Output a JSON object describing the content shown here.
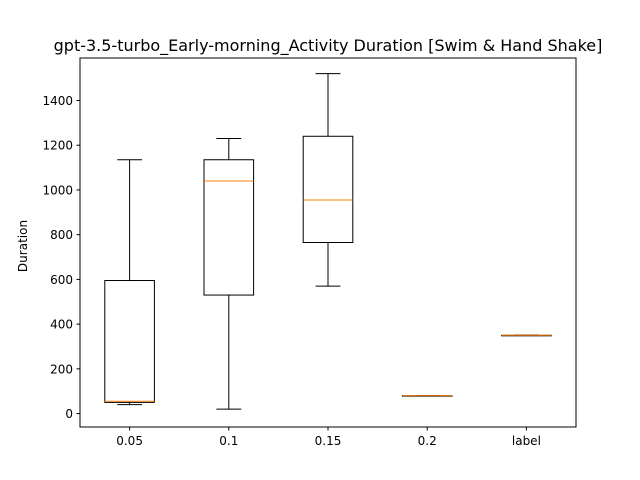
{
  "chart_data": {
    "type": "box",
    "title": "gpt-3.5-turbo_Early-morning_Activity Duration [Swim & Hand Shake]",
    "xlabel": "",
    "ylabel": "Duration",
    "ylim": [
      -60,
      1590
    ],
    "yticks": [
      0,
      200,
      400,
      600,
      800,
      1000,
      1200,
      1400
    ],
    "categories": [
      "0.05",
      "0.1",
      "0.15",
      "0.2",
      "label"
    ],
    "boxes": [
      {
        "label": "0.05",
        "whisker_low": 40,
        "q1": 50,
        "median": 55,
        "q3": 595,
        "whisker_high": 1135
      },
      {
        "label": "0.1",
        "whisker_low": 20,
        "q1": 530,
        "median": 1040,
        "q3": 1135,
        "whisker_high": 1230
      },
      {
        "label": "0.15",
        "whisker_low": 570,
        "q1": 765,
        "median": 955,
        "q3": 1240,
        "whisker_high": 1520
      },
      {
        "label": "0.2",
        "whisker_low": 80,
        "q1": 80,
        "median": 80,
        "q3": 80,
        "whisker_high": 80
      },
      {
        "label": "label",
        "whisker_low": 350,
        "q1": 350,
        "median": 350,
        "q3": 350,
        "whisker_high": 350
      }
    ],
    "grid": false,
    "box_color": "#000000",
    "median_color": "#ff7f0e"
  }
}
